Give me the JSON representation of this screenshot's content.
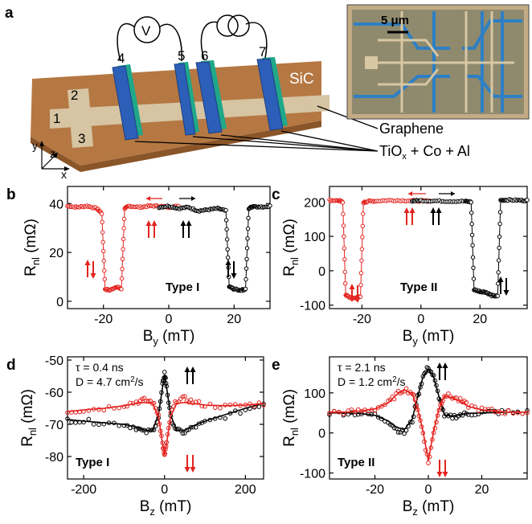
{
  "panel_a": {
    "label": "a",
    "contacts": [
      "1",
      "2",
      "3",
      "4",
      "5",
      "6",
      "7"
    ],
    "voltmeter": "V",
    "substrate": "SiC",
    "graphene_label": "Graphene",
    "electrode_label_main": "TiO",
    "electrode_label_sub": "x",
    "electrode_label_rest": " + Co + Al",
    "scale_bar": "5 μm",
    "axes": {
      "x": "x",
      "y": "y",
      "z": "z"
    },
    "colors": {
      "substrate": "#a86a3a",
      "graphene": "#d9c9a8",
      "electrode": "#2b5fb0",
      "electrode_edge": "#1fa889"
    }
  },
  "chart_data": [
    {
      "panel": "b",
      "type": "scatter",
      "xlabel_main": "B",
      "xlabel_sub": "y",
      "xlabel_unit": " (mT)",
      "ylabel_main": "R",
      "ylabel_sub": "nl",
      "ylabel_unit": " (mΩ)",
      "xlim": [
        -31,
        31
      ],
      "ylim": [
        -3,
        47
      ],
      "xticks": [
        -20,
        0,
        20
      ],
      "xtick_labels": [
        "-20",
        "0",
        "20"
      ],
      "yticks": [
        0,
        20,
        40
      ],
      "ytick_labels": [
        "0",
        "20",
        "40"
      ],
      "annotation": "Type I",
      "series": [
        {
          "color": "#e3231f",
          "direction": "down-sweep",
          "x": [
            -31,
            -28,
            -25,
            -22,
            -20.5,
            -19.5,
            -18,
            -16,
            -14.5,
            -13.5,
            -12,
            -9,
            -6,
            -3,
            0,
            3
          ],
          "y": [
            39,
            38.5,
            39,
            38,
            36,
            5,
            4.5,
            6,
            5,
            38,
            39,
            38.5,
            39,
            39,
            38.5,
            39
          ]
        },
        {
          "color": "#000000",
          "direction": "up-sweep",
          "x": [
            -3,
            0,
            3,
            6,
            9,
            12,
            15,
            17.5,
            18.5,
            20,
            22,
            23.5,
            24.5,
            26,
            28,
            31
          ],
          "y": [
            38.5,
            39,
            38,
            38.5,
            37,
            37.5,
            38,
            37,
            6,
            5,
            4.5,
            5,
            38,
            39,
            38.5,
            39
          ]
        }
      ]
    },
    {
      "panel": "c",
      "type": "scatter",
      "xlabel_main": "B",
      "xlabel_sub": "y",
      "xlabel_unit": " (mT)",
      "ylabel_main": "R",
      "ylabel_sub": "nl",
      "ylabel_unit": " (mΩ)",
      "xlim": [
        -31,
        36
      ],
      "ylim": [
        -110,
        245
      ],
      "xticks": [
        -20,
        0,
        20
      ],
      "xtick_labels": [
        "-20",
        "0",
        "20"
      ],
      "yticks": [
        -100,
        0,
        100,
        200
      ],
      "ytick_labels": [
        "-100",
        "0",
        "100",
        "200"
      ],
      "annotation": "Type II",
      "series": [
        {
          "color": "#e3231f",
          "direction": "down-sweep",
          "x": [
            -31,
            -28,
            -26.5,
            -25.5,
            -24,
            -22,
            -20.5,
            -19.5,
            -18,
            -15,
            -10,
            -5,
            0,
            3
          ],
          "y": [
            205,
            204,
            200,
            -70,
            -78,
            -79,
            -74,
            198,
            202,
            203,
            205,
            204,
            203,
            203
          ]
        },
        {
          "color": "#000000",
          "direction": "up-sweep",
          "x": [
            -3,
            0,
            5,
            10,
            15,
            17,
            18,
            20,
            22,
            24,
            26,
            27,
            29,
            33,
            36
          ],
          "y": [
            203,
            204,
            203,
            202,
            202,
            200,
            -55,
            -60,
            -62,
            -72,
            -74,
            205,
            206,
            205,
            204
          ]
        }
      ]
    },
    {
      "panel": "d",
      "type": "scatter",
      "xlabel_main": "B",
      "xlabel_sub": "z",
      "xlabel_unit": " (mT)",
      "ylabel_main": "R",
      "ylabel_sub": "nl",
      "ylabel_unit": " (mΩ)",
      "xlim": [
        -240,
        245
      ],
      "ylim": [
        -87,
        -49
      ],
      "xticks": [
        -200,
        0,
        200
      ],
      "xtick_labels": [
        "-200",
        "0",
        "200"
      ],
      "yticks": [
        -80,
        -70,
        -60,
        -50
      ],
      "ytick_labels": [
        "-80",
        "-70",
        "-60",
        "-50"
      ],
      "annotation": "Type I",
      "fit_text_1": "τ = 0.4 ns",
      "fit_text_2_main": "D = 4.7 cm",
      "fit_text_2_sup": "2",
      "fit_text_2_end": "/s",
      "series": [
        {
          "color": "#000000",
          "state": "parallel",
          "x": [
            -240,
            -200,
            -150,
            -100,
            -70,
            -50,
            -30,
            -15,
            -5,
            0,
            5,
            15,
            30,
            50,
            70,
            100,
            150,
            200,
            245
          ],
          "y": [
            -68.5,
            -69,
            -69.5,
            -70,
            -71,
            -72.5,
            -72,
            -68,
            -58,
            -54,
            -58,
            -68,
            -72,
            -72.5,
            -71,
            -69.5,
            -67.5,
            -65.5,
            -63.5
          ],
          "fit_x": [
            -240,
            -200,
            -150,
            -100,
            -70,
            -50,
            -30,
            -15,
            -5,
            0,
            5,
            15,
            30,
            50,
            70,
            100,
            150,
            200,
            245
          ],
          "fit_y": [
            -68.5,
            -69,
            -69.5,
            -70,
            -70.8,
            -71.8,
            -72,
            -67,
            -58.5,
            -54.5,
            -58.5,
            -67,
            -72,
            -71.8,
            -70.5,
            -69,
            -67,
            -65,
            -63.5
          ]
        },
        {
          "color": "#e3231f",
          "state": "antiparallel",
          "x": [
            -240,
            -200,
            -150,
            -100,
            -70,
            -50,
            -30,
            -15,
            -5,
            0,
            5,
            15,
            30,
            50,
            70,
            100,
            150,
            200,
            245
          ],
          "y": [
            -66,
            -65.5,
            -65,
            -64,
            -63,
            -62.5,
            -63,
            -67,
            -76,
            -80,
            -76,
            -67,
            -62.5,
            -62,
            -63,
            -64,
            -64.5,
            -64,
            -63.5
          ],
          "fit_x": [
            -240,
            -200,
            -150,
            -100,
            -70,
            -50,
            -30,
            -15,
            -5,
            0,
            5,
            15,
            30,
            50,
            70,
            100,
            150,
            200,
            245
          ],
          "fit_y": [
            -66,
            -65.5,
            -65,
            -64.2,
            -63.5,
            -63.2,
            -63.5,
            -67.5,
            -76,
            -79.5,
            -76,
            -67.5,
            -63.5,
            -63.2,
            -63.5,
            -64,
            -64.2,
            -64,
            -63.5
          ]
        }
      ]
    },
    {
      "panel": "e",
      "type": "scatter",
      "xlabel_main": "B",
      "xlabel_sub": "z",
      "xlabel_unit": " (mT)",
      "ylabel_main": "R",
      "ylabel_sub": "nl",
      "ylabel_unit": " (mΩ)",
      "xlim": [
        -37,
        37
      ],
      "ylim": [
        -115,
        190
      ],
      "xticks": [
        -20,
        0,
        20
      ],
      "xtick_labels": [
        "-20",
        "0",
        "20"
      ],
      "yticks": [
        -100,
        0,
        100
      ],
      "ytick_labels": [
        "-100",
        "0",
        "100"
      ],
      "annotation": "Type II",
      "fit_text_1": "τ = 2.1 ns",
      "fit_text_2_main": "D = 1.2 cm",
      "fit_text_2_sup": "2",
      "fit_text_2_end": "/s",
      "series": [
        {
          "color": "#000000",
          "state": "parallel",
          "x": [
            -37,
            -30,
            -25,
            -20,
            -15,
            -12,
            -9,
            -6,
            -4,
            -2,
            0,
            2,
            4,
            6,
            9,
            12,
            15,
            20,
            25,
            30,
            37
          ],
          "y": [
            50,
            50,
            48,
            45,
            30,
            10,
            0,
            30,
            90,
            140,
            165,
            140,
            90,
            40,
            40,
            45,
            48,
            50,
            52,
            52,
            52
          ],
          "fit_x": [
            -37,
            -30,
            -25,
            -20,
            -15,
            -12,
            -9,
            -6,
            -4,
            -2,
            0,
            2,
            4,
            6,
            9,
            12,
            15,
            20,
            25,
            30,
            37
          ],
          "fit_y": [
            50,
            50,
            48,
            44,
            30,
            15,
            8,
            35,
            90,
            140,
            160,
            140,
            90,
            45,
            42,
            46,
            49,
            50,
            51,
            52,
            52
          ]
        },
        {
          "color": "#e3231f",
          "state": "antiparallel",
          "x": [
            -37,
            -30,
            -25,
            -20,
            -15,
            -12,
            -9,
            -6,
            -4,
            -2,
            0,
            2,
            4,
            6,
            9,
            12,
            15,
            20,
            25,
            30,
            37
          ],
          "y": [
            52,
            52,
            55,
            60,
            75,
            95,
            110,
            100,
            60,
            0,
            -75,
            0,
            60,
            95,
            90,
            80,
            68,
            58,
            54,
            52,
            52
          ],
          "fit_x": [
            -37,
            -30,
            -25,
            -20,
            -15,
            -12,
            -9,
            -6,
            -4,
            -2,
            0,
            2,
            4,
            6,
            9,
            12,
            15,
            20,
            25,
            30,
            37
          ],
          "fit_y": [
            52,
            52,
            55,
            60,
            75,
            95,
            108,
            98,
            60,
            5,
            -70,
            5,
            60,
            92,
            88,
            78,
            66,
            58,
            54,
            52,
            52
          ]
        }
      ]
    }
  ]
}
